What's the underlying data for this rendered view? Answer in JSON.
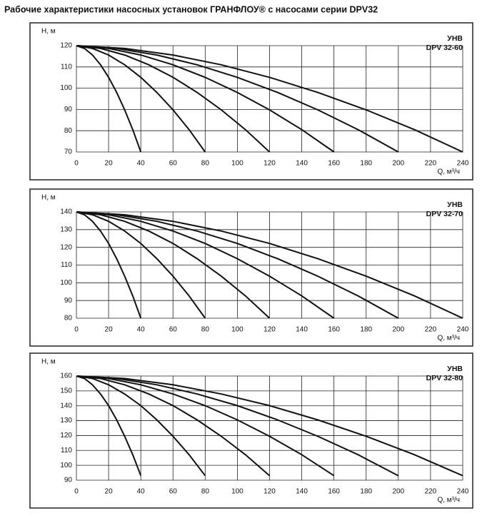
{
  "title": "Рабочие характеристики насосных установок  ГРАНФЛОУ® с насосами серии DPV32",
  "chart_data": [
    {
      "type": "line",
      "ylabel": "Н, м",
      "xlabel": "Q, м³/ч",
      "annotations": [
        "УНВ",
        "DPV 32-60"
      ],
      "xlim": [
        0,
        240
      ],
      "xticks": [
        0,
        20,
        40,
        60,
        80,
        100,
        120,
        140,
        160,
        180,
        200,
        220,
        240
      ],
      "ylim": [
        70,
        120
      ],
      "yticks": [
        70,
        80,
        90,
        100,
        110,
        120
      ],
      "grid": true,
      "series": [
        {
          "color": "#111111",
          "x": [
            0,
            5,
            10,
            15,
            20,
            25,
            30,
            35,
            40
          ],
          "values": [
            120,
            118.7,
            115.6,
            111,
            105.1,
            98,
            89.8,
            80.5,
            70
          ]
        },
        {
          "color": "#111111",
          "x": [
            0,
            10,
            20,
            30,
            40,
            50,
            60,
            70,
            80
          ],
          "values": [
            120,
            118.7,
            115.6,
            111,
            105.1,
            98,
            89.8,
            80.5,
            70
          ]
        },
        {
          "color": "#111111",
          "x": [
            0,
            15,
            30,
            45,
            60,
            75,
            90,
            105,
            120
          ],
          "values": [
            120,
            118.7,
            115.6,
            111,
            105.1,
            98,
            89.8,
            80.5,
            70
          ]
        },
        {
          "color": "#111111",
          "x": [
            0,
            20,
            40,
            60,
            80,
            100,
            120,
            140,
            160
          ],
          "values": [
            120,
            118.7,
            115.6,
            111,
            105.1,
            98,
            89.8,
            80.5,
            70
          ]
        },
        {
          "color": "#111111",
          "x": [
            0,
            25,
            50,
            75,
            100,
            125,
            150,
            175,
            200
          ],
          "values": [
            120,
            118.7,
            115.6,
            111,
            105.1,
            98,
            89.8,
            80.5,
            70
          ]
        },
        {
          "color": "#111111",
          "x": [
            0,
            30,
            60,
            90,
            120,
            150,
            180,
            210,
            240
          ],
          "values": [
            120,
            118.7,
            115.6,
            111,
            105.1,
            98,
            89.8,
            80.5,
            70
          ]
        }
      ]
    },
    {
      "type": "line",
      "ylabel": "Н, м",
      "xlabel": "Q, м³/ч",
      "annotations": [
        "УНВ",
        "DPV 32-70"
      ],
      "xlim": [
        0,
        240
      ],
      "xticks": [
        0,
        20,
        40,
        60,
        80,
        100,
        120,
        140,
        160,
        180,
        200,
        220,
        240
      ],
      "ylim": [
        80,
        140
      ],
      "yticks": [
        80,
        90,
        100,
        110,
        120,
        130,
        140
      ],
      "grid": true,
      "series": [
        {
          "color": "#111111",
          "x": [
            0,
            5,
            10,
            15,
            20,
            25,
            30,
            35,
            40
          ],
          "values": [
            140,
            138.4,
            134.7,
            129.2,
            122.2,
            113.6,
            103.7,
            92.6,
            80
          ]
        },
        {
          "color": "#111111",
          "x": [
            0,
            10,
            20,
            30,
            40,
            50,
            60,
            70,
            80
          ],
          "values": [
            140,
            138.4,
            134.7,
            129.2,
            122.2,
            113.6,
            103.7,
            92.6,
            80
          ]
        },
        {
          "color": "#111111",
          "x": [
            0,
            15,
            30,
            45,
            60,
            75,
            90,
            105,
            120
          ],
          "values": [
            140,
            138.4,
            134.7,
            129.2,
            122.2,
            113.6,
            103.7,
            92.6,
            80
          ]
        },
        {
          "color": "#111111",
          "x": [
            0,
            20,
            40,
            60,
            80,
            100,
            120,
            140,
            160
          ],
          "values": [
            140,
            138.4,
            134.7,
            129.2,
            122.2,
            113.6,
            103.7,
            92.6,
            80
          ]
        },
        {
          "color": "#111111",
          "x": [
            0,
            25,
            50,
            75,
            100,
            125,
            150,
            175,
            200
          ],
          "values": [
            140,
            138.4,
            134.7,
            129.2,
            122.2,
            113.6,
            103.7,
            92.6,
            80
          ]
        },
        {
          "color": "#111111",
          "x": [
            0,
            30,
            60,
            90,
            120,
            150,
            180,
            210,
            240
          ],
          "values": [
            140,
            138.4,
            134.7,
            129.2,
            122.2,
            113.6,
            103.7,
            92.6,
            80
          ]
        }
      ]
    },
    {
      "type": "line",
      "ylabel": "Н, м",
      "xlabel": "Q, м³/ч",
      "annotations": [
        "УНВ",
        "DPV 32-80"
      ],
      "xlim": [
        0,
        240
      ],
      "xticks": [
        0,
        20,
        40,
        60,
        80,
        100,
        120,
        140,
        160,
        180,
        200,
        220,
        240
      ],
      "ylim": [
        90,
        160
      ],
      "yticks": [
        90,
        100,
        110,
        120,
        130,
        140,
        150,
        160
      ],
      "grid": true,
      "series": [
        {
          "color": "#111111",
          "x": [
            0,
            5,
            10,
            15,
            20,
            25,
            30,
            35,
            40
          ],
          "values": [
            160,
            158.3,
            154.1,
            147.9,
            140.1,
            130.5,
            119.5,
            107.1,
            93
          ]
        },
        {
          "color": "#111111",
          "x": [
            0,
            10,
            20,
            30,
            40,
            50,
            60,
            70,
            80
          ],
          "values": [
            160,
            158.3,
            154.1,
            147.9,
            140.1,
            130.5,
            119.5,
            107.1,
            93
          ]
        },
        {
          "color": "#111111",
          "x": [
            0,
            15,
            30,
            45,
            60,
            75,
            90,
            105,
            120
          ],
          "values": [
            160,
            158.3,
            154.1,
            147.9,
            140.1,
            130.5,
            119.5,
            107.1,
            93
          ]
        },
        {
          "color": "#111111",
          "x": [
            0,
            20,
            40,
            60,
            80,
            100,
            120,
            140,
            160
          ],
          "values": [
            160,
            158.3,
            154.1,
            147.9,
            140.1,
            130.5,
            119.5,
            107.1,
            93
          ]
        },
        {
          "color": "#111111",
          "x": [
            0,
            25,
            50,
            75,
            100,
            125,
            150,
            175,
            200
          ],
          "values": [
            160,
            158.3,
            154.1,
            147.9,
            140.1,
            130.5,
            119.5,
            107.1,
            93
          ]
        },
        {
          "color": "#111111",
          "x": [
            0,
            30,
            60,
            90,
            120,
            150,
            180,
            210,
            240
          ],
          "values": [
            160,
            158.3,
            154.1,
            147.9,
            140.1,
            130.5,
            119.5,
            107.1,
            93
          ]
        }
      ]
    }
  ]
}
